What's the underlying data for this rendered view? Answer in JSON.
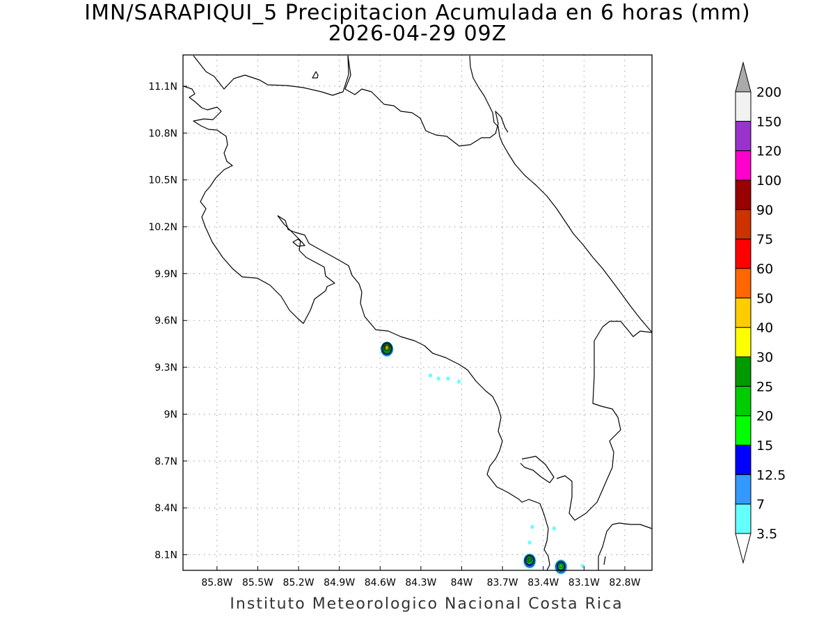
{
  "title": {
    "line1": "IMN/SARAPIQUI_5 Precipitacion Acumulada en 6 horas (mm)",
    "line2": "2026-04-29 09Z"
  },
  "credit": "Instituto Meteorologico Nacional Costa Rica",
  "map": {
    "lon_range": [
      -86.05,
      -82.6
    ],
    "lat_range": [
      8.0,
      11.3
    ],
    "lon_ticks": [
      {
        "value": -85.8,
        "label": "85.8W"
      },
      {
        "value": -85.5,
        "label": "85.5W"
      },
      {
        "value": -85.2,
        "label": "85.2W"
      },
      {
        "value": -84.9,
        "label": "84.9W"
      },
      {
        "value": -84.6,
        "label": "84.6W"
      },
      {
        "value": -84.3,
        "label": "84.3W"
      },
      {
        "value": -84.0,
        "label": "84W"
      },
      {
        "value": -83.7,
        "label": "83.7W"
      },
      {
        "value": -83.4,
        "label": "83.4W"
      },
      {
        "value": -83.1,
        "label": "83.1W"
      },
      {
        "value": -82.8,
        "label": "82.8W"
      }
    ],
    "lat_ticks": [
      {
        "value": 8.1,
        "label": "8.1N"
      },
      {
        "value": 8.4,
        "label": "8.4N"
      },
      {
        "value": 8.7,
        "label": "8.7N"
      },
      {
        "value": 9.0,
        "label": "9N"
      },
      {
        "value": 9.3,
        "label": "9.3N"
      },
      {
        "value": 9.6,
        "label": "9.6N"
      },
      {
        "value": 9.9,
        "label": "9.9N"
      },
      {
        "value": 10.2,
        "label": "10.2N"
      },
      {
        "value": 10.5,
        "label": "10.5N"
      },
      {
        "value": 10.8,
        "label": "10.8N"
      },
      {
        "value": 11.1,
        "label": "11.1N"
      }
    ],
    "grid": true,
    "coastline_color": "#000000"
  },
  "colorbar": {
    "placement": "right",
    "bins": [
      {
        "label": "3.5",
        "color": "#66ffff"
      },
      {
        "label": "7",
        "color": "#3399ff"
      },
      {
        "label": "12.5",
        "color": "#0000ff"
      },
      {
        "label": "15",
        "color": "#00ff00"
      },
      {
        "label": "20",
        "color": "#00cc00"
      },
      {
        "label": "25",
        "color": "#009900"
      },
      {
        "label": "30",
        "color": "#ffff00"
      },
      {
        "label": "40",
        "color": "#ffcc00"
      },
      {
        "label": "50",
        "color": "#ff6600"
      },
      {
        "label": "60",
        "color": "#ff0000"
      },
      {
        "label": "75",
        "color": "#cc3300"
      },
      {
        "label": "90",
        "color": "#990000"
      },
      {
        "label": "100",
        "color": "#ff00cc"
      },
      {
        "label": "120",
        "color": "#9933cc"
      },
      {
        "label": "150",
        "color": "#f2f2f2"
      },
      {
        "label": "200",
        "color": "#aaaaaa"
      }
    ]
  },
  "precip_features": [
    {
      "name": "cell-nicoya-gulf-east",
      "lon": -84.55,
      "lat": 9.43,
      "max_class": "40"
    },
    {
      "name": "cell-osa-north",
      "lon": -83.5,
      "lat": 8.07,
      "max_class": "25"
    },
    {
      "name": "cell-osa-south",
      "lon": -83.27,
      "lat": 8.03,
      "max_class": "20"
    },
    {
      "name": "dot-coast-1",
      "lon": -84.23,
      "lat": 9.25,
      "max_class": "3.5"
    },
    {
      "name": "dot-coast-2",
      "lon": -84.17,
      "lat": 9.23,
      "max_class": "3.5"
    },
    {
      "name": "dot-coast-3",
      "lon": -84.1,
      "lat": 9.23,
      "max_class": "3.5"
    },
    {
      "name": "dot-coast-4",
      "lon": -84.02,
      "lat": 9.21,
      "max_class": "3.5"
    },
    {
      "name": "dot-south-1",
      "lon": -83.48,
      "lat": 8.28,
      "max_class": "3.5"
    },
    {
      "name": "dot-south-2",
      "lon": -83.32,
      "lat": 8.27,
      "max_class": "3.5"
    },
    {
      "name": "dot-south-3",
      "lon": -83.5,
      "lat": 8.18,
      "max_class": "3.5"
    },
    {
      "name": "dot-south-4",
      "lon": -83.11,
      "lat": 8.03,
      "max_class": "3.5"
    }
  ]
}
